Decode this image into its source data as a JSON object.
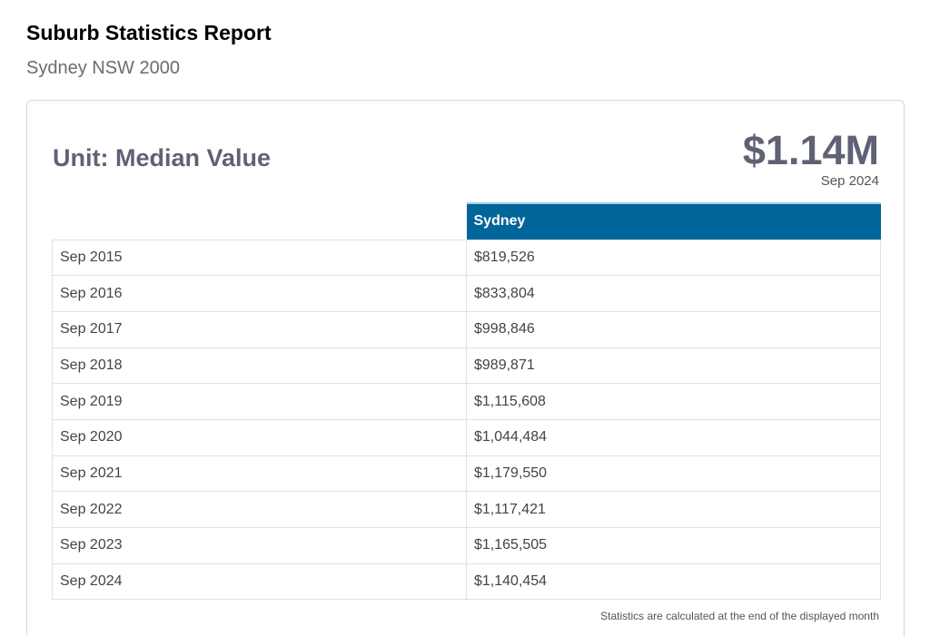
{
  "report": {
    "title": "Suburb Statistics Report",
    "subtitle": "Sydney NSW 2000"
  },
  "card": {
    "heading": "Unit: Median Value",
    "headline_value": "$1.14M",
    "headline_date": "Sep 2024",
    "footnote": "Statistics are calculated at the end of the displayed month"
  },
  "table": {
    "header_blank": "",
    "series_name": "Sydney",
    "header_color": "#006699",
    "rows": [
      {
        "period": "Sep 2015",
        "value": "$819,526"
      },
      {
        "period": "Sep 2016",
        "value": "$833,804"
      },
      {
        "period": "Sep 2017",
        "value": "$998,846"
      },
      {
        "period": "Sep 2018",
        "value": "$989,871"
      },
      {
        "period": "Sep 2019",
        "value": "$1,115,608"
      },
      {
        "period": "Sep 2020",
        "value": "$1,044,484"
      },
      {
        "period": "Sep 2021",
        "value": "$1,179,550"
      },
      {
        "period": "Sep 2022",
        "value": "$1,117,421"
      },
      {
        "period": "Sep 2023",
        "value": "$1,165,505"
      },
      {
        "period": "Sep 2024",
        "value": "$1,140,454"
      }
    ]
  }
}
